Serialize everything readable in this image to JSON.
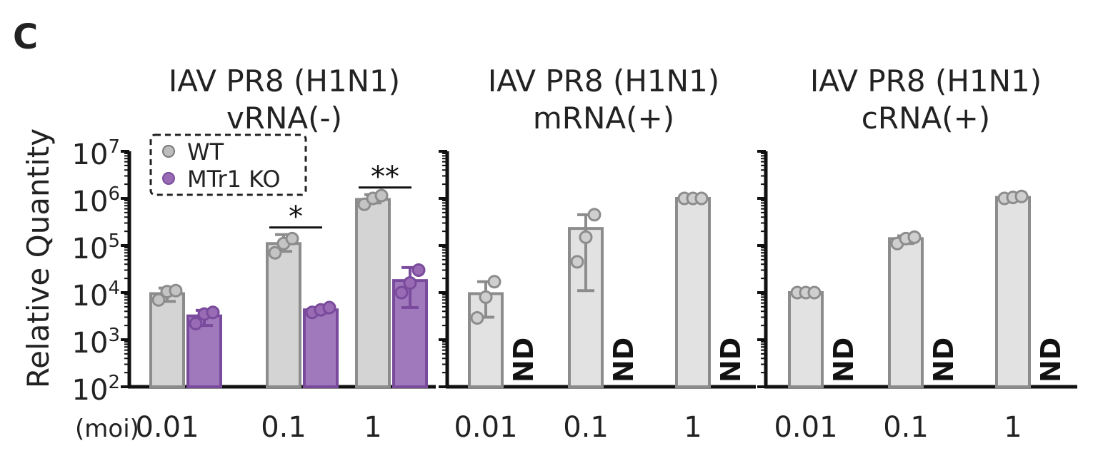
{
  "panel_label": "C",
  "y_axis": {
    "label": "Relative Quantity",
    "scale": "log10",
    "range": [
      100,
      10000000
    ],
    "tick_labels": [
      {
        "base": "10",
        "exp": "2",
        "value": 100
      },
      {
        "base": "10",
        "exp": "3",
        "value": 1000
      },
      {
        "base": "10",
        "exp": "4",
        "value": 10000
      },
      {
        "base": "10",
        "exp": "5",
        "value": 100000
      },
      {
        "base": "10",
        "exp": "6",
        "value": 1000000
      },
      {
        "base": "10",
        "exp": "7",
        "value": 10000000
      }
    ]
  },
  "x_axis": {
    "label": "(moi)",
    "categories": [
      "0.01",
      "0.1",
      "1"
    ]
  },
  "legend": {
    "placement": "top-left of first panel",
    "entries": [
      {
        "label": "WT",
        "color": "#bdbdbd"
      },
      {
        "label": "MTr1 KO",
        "color": "#9a6bb5"
      }
    ]
  },
  "colors": {
    "wt_bar": "#d4d4d4",
    "wt_edge": "#8c8c8c",
    "ko_bar": "#a079bd",
    "ko_edge": "#7a4b9c",
    "single_bar": "#e2e2e2",
    "single_edge": "#8c8c8c"
  },
  "nd_label": "ND",
  "chart_data": [
    {
      "type": "bar",
      "title": "IAV PR8 (H1N1)",
      "subtitle": "vRNA(-)",
      "categories": [
        "0.01",
        "0.1",
        "1"
      ],
      "ylim": [
        100,
        10000000
      ],
      "ylog": true,
      "series": [
        {
          "name": "WT",
          "values": [
            9500,
            110000,
            950000
          ],
          "err_low": [
            6500,
            75000,
            800000
          ],
          "err_high": [
            12500,
            170000,
            1200000
          ],
          "points": [
            [
              7000,
              10500,
              11000
            ],
            [
              70000,
              110000,
              140000
            ],
            [
              750000,
              1000000,
              1150000
            ]
          ]
        },
        {
          "name": "MTr1 KO",
          "values": [
            3200,
            4300,
            18000
          ],
          "err_low": [
            2000,
            3700,
            4800
          ],
          "err_high": [
            4200,
            4800,
            34000
          ],
          "points": [
            [
              2200,
              3500,
              3800
            ],
            [
              3800,
              4300,
              4800
            ],
            [
              10000,
              16000,
              30000
            ]
          ]
        }
      ],
      "annotations": [
        {
          "text": "*",
          "between": "WT vs MTr1 KO",
          "category": "0.1"
        },
        {
          "text": "**",
          "between": "WT vs MTr1 KO",
          "category": "1"
        }
      ]
    },
    {
      "type": "bar",
      "title": "IAV PR8 (H1N1)",
      "subtitle": "mRNA(+)",
      "categories": [
        "0.01",
        "0.1",
        "1"
      ],
      "ylim": [
        100,
        10000000
      ],
      "ylog": true,
      "series": [
        {
          "name": "WT",
          "values": [
            9500,
            230000,
            1000000
          ],
          "err_low": [
            3000,
            11000,
            1000000
          ],
          "err_high": [
            17000,
            450000,
            1050000
          ],
          "points": [
            [
              2900,
              8000,
              17000
            ],
            [
              45000,
              150000,
              450000
            ],
            [
              1000000,
              1000000,
              1000000
            ]
          ]
        },
        {
          "name": "MTr1 KO",
          "values": [
            null,
            null,
            null
          ],
          "not_detected": [
            true,
            true,
            true
          ]
        }
      ]
    },
    {
      "type": "bar",
      "title": "IAV PR8 (H1N1)",
      "subtitle": "cRNA(+)",
      "categories": [
        "0.01",
        "0.1",
        "1"
      ],
      "ylim": [
        100,
        10000000
      ],
      "ylog": true,
      "series": [
        {
          "name": "WT",
          "values": [
            10000,
            140000,
            1050000
          ],
          "err_low": [
            9800,
            110000,
            1000000
          ],
          "err_high": [
            10200,
            160000,
            1100000
          ],
          "points": [
            [
              10000,
              10000,
              10000
            ],
            [
              110000,
              140000,
              150000
            ],
            [
              1000000,
              1050000,
              1100000
            ]
          ]
        },
        {
          "name": "MTr1 KO",
          "values": [
            null,
            null,
            null
          ],
          "not_detected": [
            true,
            true,
            true
          ]
        }
      ]
    }
  ]
}
